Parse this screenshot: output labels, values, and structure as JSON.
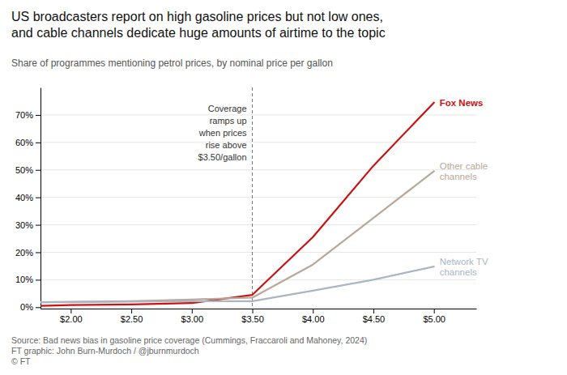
{
  "chart_data": {
    "type": "line",
    "title": "US broadcasters report on high gasoline prices but not low ones,\nand cable channels dedicate huge amounts of airtime to the topic",
    "subtitle": "Share of programmes mentioning petrol prices, by nominal price per gallon",
    "source": "Source: Bad news bias in gasoline price coverage (Cummings, Fraccaroli and Mahoney, 2024)\nFT graphic: John Burn-Murdoch / @jburnmurdoch\n© FT",
    "x": [
      1.75,
      2.0,
      2.5,
      3.0,
      3.5,
      4.0,
      4.5,
      5.0
    ],
    "series": [
      {
        "name": "Fox News",
        "color": "#cc1111",
        "values": [
          0.005,
          0.008,
          0.01,
          0.015,
          0.045,
          0.255,
          0.515,
          0.745
        ]
      },
      {
        "name": "Other cable\nchannels",
        "color": "#b8a898",
        "values": [
          0.018,
          0.02,
          0.022,
          0.028,
          0.035,
          0.155,
          0.325,
          0.495
        ]
      },
      {
        "name": "Network TV\nchannels",
        "color": "#aab5c5",
        "values": [
          0.018,
          0.018,
          0.02,
          0.022,
          0.022,
          0.06,
          0.1,
          0.148
        ]
      }
    ],
    "annotations": [
      {
        "x": 3.5,
        "text": "Coverage\nramps up\nwhen prices\nrise above\n$3.50/gallon"
      }
    ],
    "xlim": [
      1.75,
      5.35
    ],
    "ylim": [
      -0.005,
      0.8
    ],
    "xticks": [
      {
        "value": 2.0,
        "label": "$2.00"
      },
      {
        "value": 2.5,
        "label": "$2.50"
      },
      {
        "value": 3.0,
        "label": "$3.00"
      },
      {
        "value": 3.5,
        "label": "$3.50"
      },
      {
        "value": 4.0,
        "label": "$4.00"
      },
      {
        "value": 4.5,
        "label": "$4.50"
      },
      {
        "value": 5.0,
        "label": "$5.00"
      }
    ],
    "yticks": [
      {
        "value": 0.0,
        "label": "0%"
      },
      {
        "value": 0.1,
        "label": "10%"
      },
      {
        "value": 0.2,
        "label": "20%"
      },
      {
        "value": 0.3,
        "label": "30%"
      },
      {
        "value": 0.4,
        "label": "40%"
      },
      {
        "value": 0.5,
        "label": "50%"
      },
      {
        "value": 0.6,
        "label": "60%"
      },
      {
        "value": 0.7,
        "label": "70%"
      }
    ],
    "grid": true
  }
}
